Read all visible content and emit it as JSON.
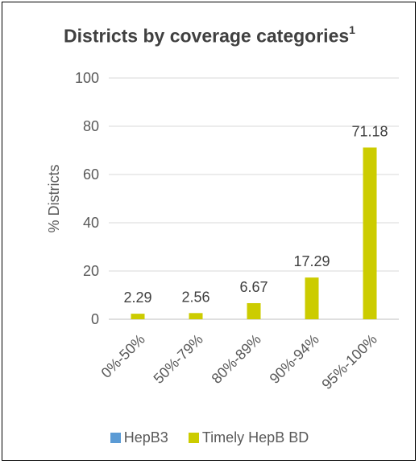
{
  "chart_data": {
    "type": "bar",
    "title": "Districts by coverage categories",
    "title_superscript": "1",
    "ylabel": "% Districts",
    "xlabel": "",
    "ylim": [
      0,
      100
    ],
    "yticks": [
      0,
      20,
      40,
      60,
      80,
      100
    ],
    "grid": true,
    "legend_position": "bottom",
    "categories": [
      "0%-50%",
      "50%-79%",
      "80%-89%",
      "90%-94%",
      "95%-100%"
    ],
    "series": [
      {
        "name": "HepB3",
        "color": "#5B9BD5",
        "values": [
          null,
          null,
          null,
          null,
          null
        ]
      },
      {
        "name": "Timely HepB BD",
        "color": "#CCCC00",
        "values": [
          2.29,
          2.56,
          6.67,
          17.29,
          71.18
        ]
      }
    ],
    "data_labels": [
      "2.29",
      "2.56",
      "6.67",
      "17.29",
      "71.18"
    ]
  }
}
